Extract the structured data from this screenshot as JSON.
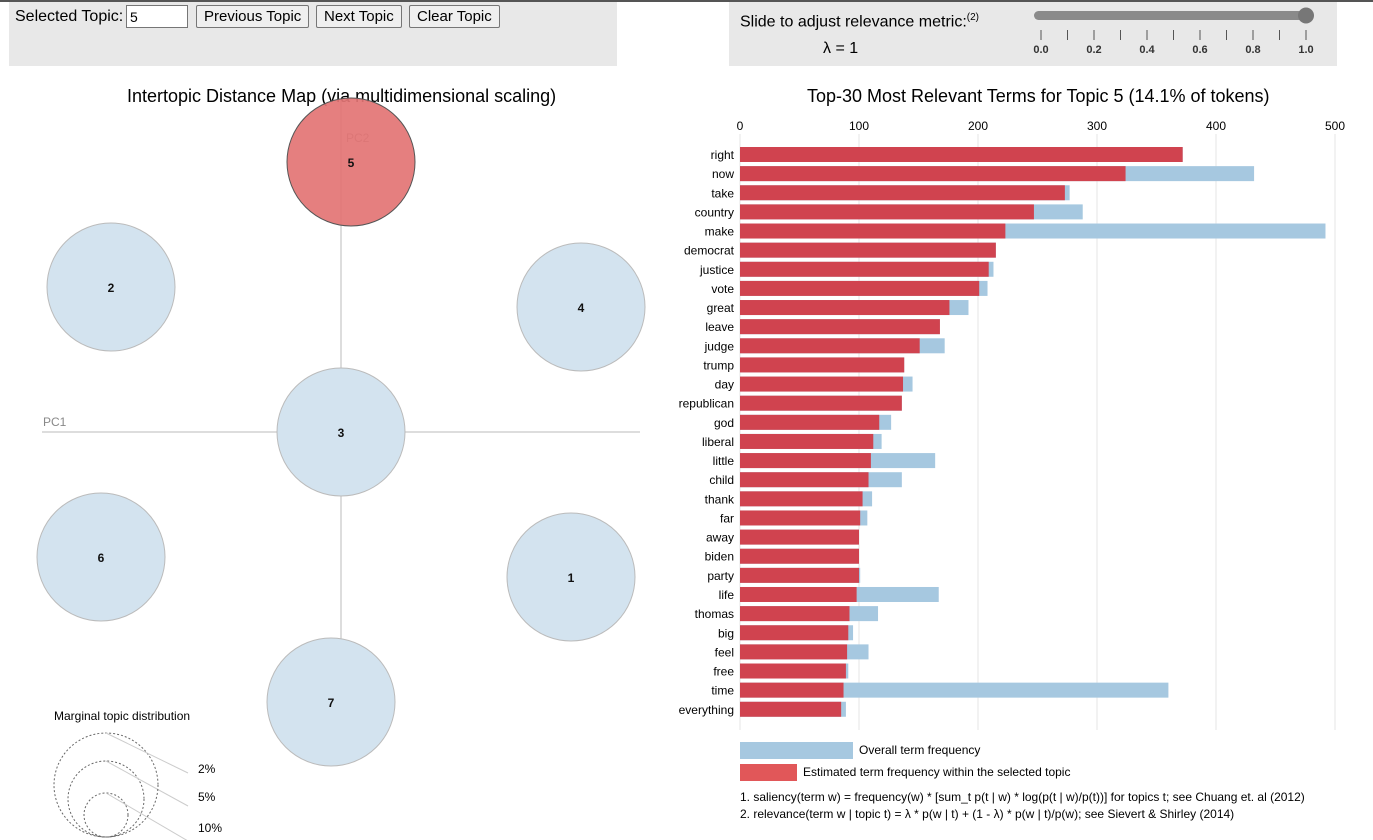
{
  "controls": {
    "selected_topic_label": "Selected Topic:",
    "selected_topic_value": "5",
    "prev_label": "Previous Topic",
    "next_label": "Next Topic",
    "clear_label": "Clear Topic",
    "slider_label": "Slide to adjust relevance metric:",
    "slider_footnote": "(2)",
    "lambda_text": "λ = 1",
    "lambda_value": 1.0,
    "slider_ticks": [
      "0.0",
      "0.2",
      "0.4",
      "0.6",
      "0.8",
      "1.0"
    ]
  },
  "map": {
    "title": "Intertopic Distance Map (via multidimensional scaling)",
    "pc1_label": "PC1",
    "pc2_label": "PC2",
    "selected_topic": 5,
    "topics": [
      {
        "id": "1",
        "pc1": 0.23,
        "pc2": -0.145,
        "size": 8
      },
      {
        "id": "2",
        "pc1": -0.23,
        "pc2": 0.145,
        "size": 8
      },
      {
        "id": "3",
        "pc1": 0.0,
        "pc2": 0.0,
        "size": 8
      },
      {
        "id": "4",
        "pc1": 0.24,
        "pc2": 0.125,
        "size": 8
      },
      {
        "id": "5",
        "pc1": 0.01,
        "pc2": 0.27,
        "size": 8
      },
      {
        "id": "6",
        "pc1": -0.24,
        "pc2": -0.125,
        "size": 8
      },
      {
        "id": "7",
        "pc1": -0.01,
        "pc2": -0.27,
        "size": 8
      }
    ],
    "marginal": {
      "title": "Marginal topic distribution",
      "labels": [
        "2%",
        "5%",
        "10%"
      ]
    }
  },
  "chart_data": {
    "type": "bar",
    "title": "Top-30 Most Relevant Terms for Topic 5 (14.1% of tokens)",
    "xlim": [
      0,
      500
    ],
    "xticks": [
      "0",
      "100",
      "200",
      "300",
      "400",
      "500"
    ],
    "categories": [
      "right",
      "now",
      "take",
      "country",
      "make",
      "democrat",
      "justice",
      "vote",
      "great",
      "leave",
      "judge",
      "trump",
      "day",
      "republican",
      "god",
      "liberal",
      "little",
      "child",
      "thank",
      "far",
      "away",
      "biden",
      "party",
      "life",
      "thomas",
      "big",
      "feel",
      "free",
      "time",
      "everything"
    ],
    "series": [
      {
        "name": "Overall term frequency",
        "color": "#a6c8e0",
        "values": [
          372,
          432,
          277,
          288,
          492,
          215,
          213,
          208,
          192,
          168,
          172,
          138,
          145,
          136,
          127,
          119,
          164,
          136,
          111,
          107,
          100,
          100,
          101,
          167,
          116,
          95,
          108,
          91,
          360,
          89
        ]
      },
      {
        "name": "Estimated term frequency within the selected topic",
        "color": "#d0434f",
        "values": [
          372,
          324,
          273,
          247,
          223,
          215,
          209,
          201,
          176,
          168,
          151,
          138,
          137,
          136,
          117,
          112,
          110,
          108,
          103,
          101,
          100,
          100,
          100,
          98,
          92,
          91,
          90,
          89,
          87,
          85
        ]
      }
    ],
    "legend": [
      "Overall term frequency",
      "Estimated term frequency within the selected topic"
    ]
  },
  "notes": [
    "1. saliency(term w) = frequency(w) * [sum_t p(t | w) * log(p(t | w)/p(t))] for topics t; see Chuang et. al (2012)",
    "2. relevance(term w | topic t) = λ * p(w | t) + (1 - λ) * p(w | t)/p(w); see Sievert & Shirley (2014)"
  ],
  "colors": {
    "selected_circle": "#e37474",
    "circle_fill": "#d3e3ef",
    "overall_bar": "#a6c8e0",
    "topic_bar": "#d0434f",
    "legend_topic": "#e15759"
  }
}
